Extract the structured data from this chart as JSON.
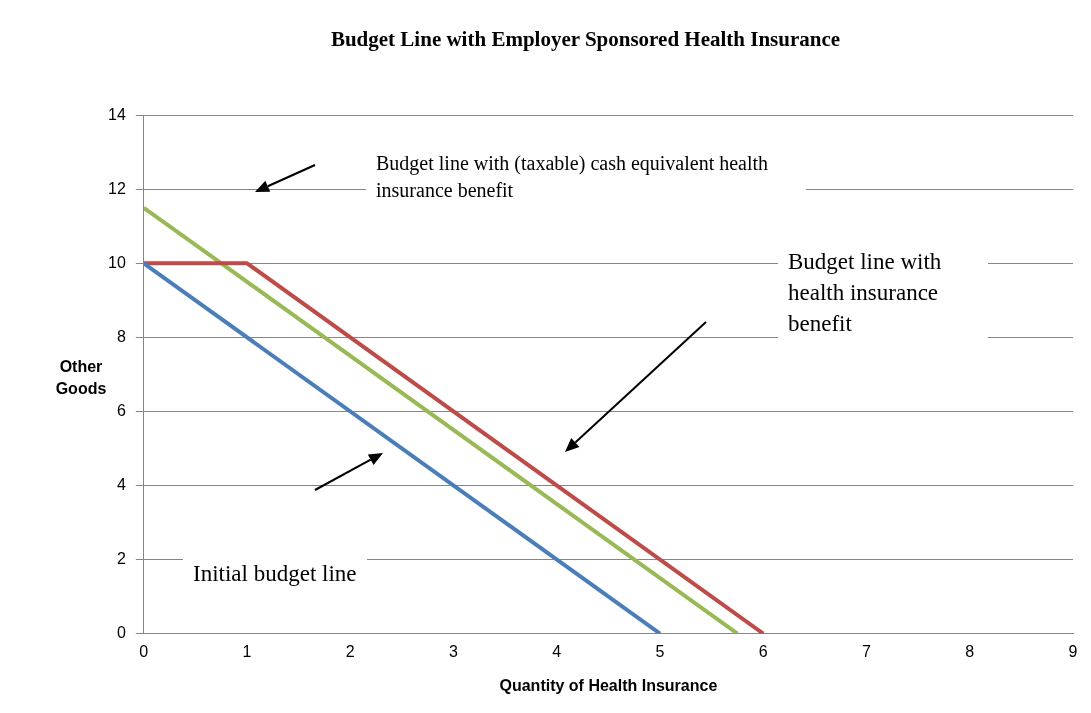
{
  "chart_data": {
    "type": "line",
    "title": "Budget Line with Employer Sponsored Health Insurance",
    "xlabel": "Quantity of Health Insurance",
    "ylabel": "Other Goods",
    "xlim": [
      0,
      9
    ],
    "ylim": [
      0,
      14
    ],
    "xticks": [
      0,
      1,
      2,
      3,
      4,
      5,
      6,
      7,
      8,
      9
    ],
    "yticks": [
      0,
      2,
      4,
      6,
      8,
      10,
      12,
      14
    ],
    "grid": "y",
    "legend": false,
    "marker": "none",
    "series": [
      {
        "color": "#4a7ebb",
        "x": [
          0,
          5
        ],
        "values": [
          10,
          0
        ]
      },
      {
        "color": "#be4b48",
        "x": [
          0,
          1,
          6
        ],
        "values": [
          10,
          10,
          0
        ]
      },
      {
        "color": "#98b954",
        "x": [
          0,
          5.75
        ],
        "values": [
          11.5,
          0
        ]
      }
    ],
    "annotations": [
      "Budget line with (taxable) cash equivalent health insurance benefit",
      "Budget line with health insurance benefit",
      "Initial budget line"
    ]
  }
}
